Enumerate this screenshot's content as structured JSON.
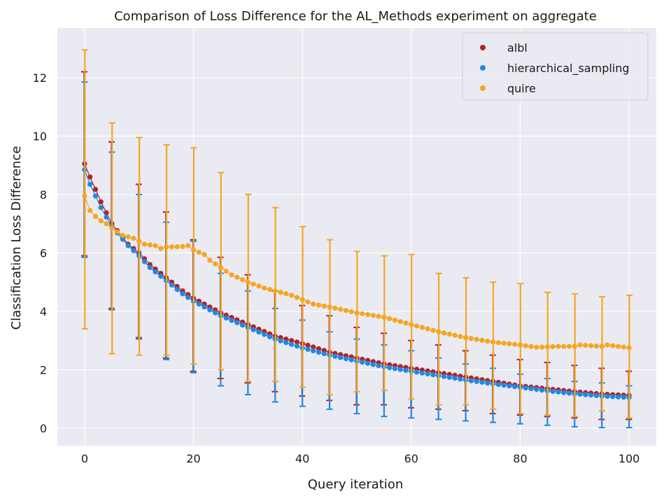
{
  "chart_data": {
    "type": "scatter",
    "title": "Comparison of Loss Difference for the AL_Methods experiment on aggregate",
    "xlabel": "Query iteration",
    "ylabel": "Classification Loss Difference",
    "xlim": [
      -5,
      105
    ],
    "ylim": [
      -0.6,
      13.7
    ],
    "xticks": [
      0,
      20,
      40,
      60,
      80,
      100
    ],
    "yticks": [
      0,
      2,
      4,
      6,
      8,
      10,
      12
    ],
    "grid": true,
    "background": "#eaeaf2",
    "legend_position": "top-right",
    "error_bar_every": 5,
    "series": [
      {
        "name": "albl",
        "color": "#b22222",
        "key_points": [
          [
            0,
            9.05
          ],
          [
            1,
            8.6
          ],
          [
            3,
            7.75
          ],
          [
            5,
            7.0
          ],
          [
            8,
            6.3
          ],
          [
            10,
            6.0
          ],
          [
            12,
            5.6
          ],
          [
            15,
            5.15
          ],
          [
            18,
            4.7
          ],
          [
            20,
            4.45
          ],
          [
            25,
            3.95
          ],
          [
            30,
            3.55
          ],
          [
            35,
            3.15
          ],
          [
            40,
            2.9
          ],
          [
            45,
            2.6
          ],
          [
            50,
            2.4
          ],
          [
            55,
            2.2
          ],
          [
            60,
            2.05
          ],
          [
            65,
            1.9
          ],
          [
            70,
            1.75
          ],
          [
            75,
            1.6
          ],
          [
            80,
            1.45
          ],
          [
            85,
            1.35
          ],
          [
            90,
            1.25
          ],
          [
            95,
            1.17
          ],
          [
            100,
            1.12
          ]
        ],
        "err_x": [
          0,
          5,
          10,
          15,
          20,
          25,
          30,
          35,
          40,
          45,
          50,
          55,
          60,
          65,
          70,
          75,
          80,
          85,
          90,
          95,
          100
        ],
        "err_low": [
          5.9,
          4.1,
          3.1,
          2.4,
          1.95,
          1.7,
          1.55,
          1.25,
          1.1,
          0.95,
          0.8,
          0.8,
          0.7,
          0.65,
          0.6,
          0.5,
          0.45,
          0.4,
          0.35,
          0.3,
          0.3
        ],
        "err_high": [
          12.2,
          9.8,
          8.35,
          7.4,
          6.45,
          5.85,
          5.25,
          4.7,
          4.2,
          3.85,
          3.45,
          3.25,
          3.0,
          2.85,
          2.65,
          2.5,
          2.35,
          2.25,
          2.15,
          2.05,
          1.95
        ]
      },
      {
        "name": "hierarchical_sampling",
        "color": "#1e88e5",
        "key_points": [
          [
            0,
            8.85
          ],
          [
            1,
            8.35
          ],
          [
            3,
            7.55
          ],
          [
            5,
            6.9
          ],
          [
            8,
            6.25
          ],
          [
            10,
            5.9
          ],
          [
            12,
            5.5
          ],
          [
            15,
            5.05
          ],
          [
            18,
            4.6
          ],
          [
            20,
            4.35
          ],
          [
            25,
            3.85
          ],
          [
            30,
            3.45
          ],
          [
            35,
            3.05
          ],
          [
            40,
            2.75
          ],
          [
            45,
            2.5
          ],
          [
            50,
            2.3
          ],
          [
            55,
            2.1
          ],
          [
            60,
            1.95
          ],
          [
            65,
            1.8
          ],
          [
            70,
            1.65
          ],
          [
            75,
            1.52
          ],
          [
            80,
            1.4
          ],
          [
            85,
            1.28
          ],
          [
            90,
            1.18
          ],
          [
            95,
            1.1
          ],
          [
            100,
            1.05
          ]
        ],
        "err_x": [
          0,
          5,
          10,
          15,
          20,
          25,
          30,
          35,
          40,
          45,
          50,
          55,
          60,
          65,
          70,
          75,
          80,
          85,
          90,
          95,
          100
        ],
        "err_low": [
          5.85,
          4.05,
          3.05,
          2.35,
          1.9,
          1.45,
          1.15,
          0.9,
          0.75,
          0.65,
          0.5,
          0.4,
          0.35,
          0.3,
          0.25,
          0.2,
          0.15,
          0.1,
          0.05,
          0.02,
          0.02
        ],
        "err_high": [
          11.85,
          9.45,
          8.0,
          7.05,
          6.4,
          5.3,
          4.7,
          4.1,
          3.7,
          3.3,
          3.05,
          2.85,
          2.65,
          2.4,
          2.2,
          2.05,
          1.85,
          1.7,
          1.6,
          1.55,
          1.45
        ]
      },
      {
        "name": "quire",
        "color": "#f5a623",
        "key_points": [
          [
            0,
            7.95
          ],
          [
            1,
            7.45
          ],
          [
            2,
            7.25
          ],
          [
            3,
            7.1
          ],
          [
            4,
            7.0
          ],
          [
            5,
            6.85
          ],
          [
            7,
            6.6
          ],
          [
            9,
            6.5
          ],
          [
            11,
            6.3
          ],
          [
            13,
            6.25
          ],
          [
            14,
            6.15
          ],
          [
            15,
            6.2
          ],
          [
            18,
            6.22
          ],
          [
            19,
            6.25
          ],
          [
            20,
            6.1
          ],
          [
            22,
            5.95
          ],
          [
            23,
            5.75
          ],
          [
            25,
            5.5
          ],
          [
            27,
            5.25
          ],
          [
            30,
            5.0
          ],
          [
            33,
            4.8
          ],
          [
            36,
            4.65
          ],
          [
            38,
            4.55
          ],
          [
            40,
            4.4
          ],
          [
            42,
            4.25
          ],
          [
            45,
            4.15
          ],
          [
            50,
            3.95
          ],
          [
            55,
            3.8
          ],
          [
            60,
            3.55
          ],
          [
            65,
            3.3
          ],
          [
            70,
            3.1
          ],
          [
            75,
            2.95
          ],
          [
            80,
            2.85
          ],
          [
            83,
            2.77
          ],
          [
            87,
            2.8
          ],
          [
            90,
            2.8
          ],
          [
            91,
            2.85
          ],
          [
            95,
            2.8
          ],
          [
            96,
            2.85
          ],
          [
            100,
            2.75
          ]
        ],
        "err_x": [
          0,
          5,
          10,
          15,
          20,
          25,
          30,
          35,
          40,
          45,
          50,
          55,
          60,
          65,
          70,
          75,
          80,
          85,
          90,
          95,
          100
        ],
        "err_low": [
          3.4,
          2.55,
          2.5,
          2.5,
          2.2,
          2.0,
          1.6,
          1.6,
          1.4,
          1.15,
          1.25,
          1.3,
          1.0,
          0.8,
          0.8,
          0.65,
          0.5,
          0.45,
          0.4,
          0.6,
          0.35
        ],
        "err_high": [
          12.95,
          10.45,
          9.95,
          9.7,
          9.6,
          8.75,
          8.0,
          7.55,
          6.9,
          6.45,
          6.05,
          5.9,
          5.95,
          5.3,
          5.15,
          5.0,
          4.95,
          4.65,
          4.6,
          4.5,
          4.55
        ]
      }
    ]
  }
}
